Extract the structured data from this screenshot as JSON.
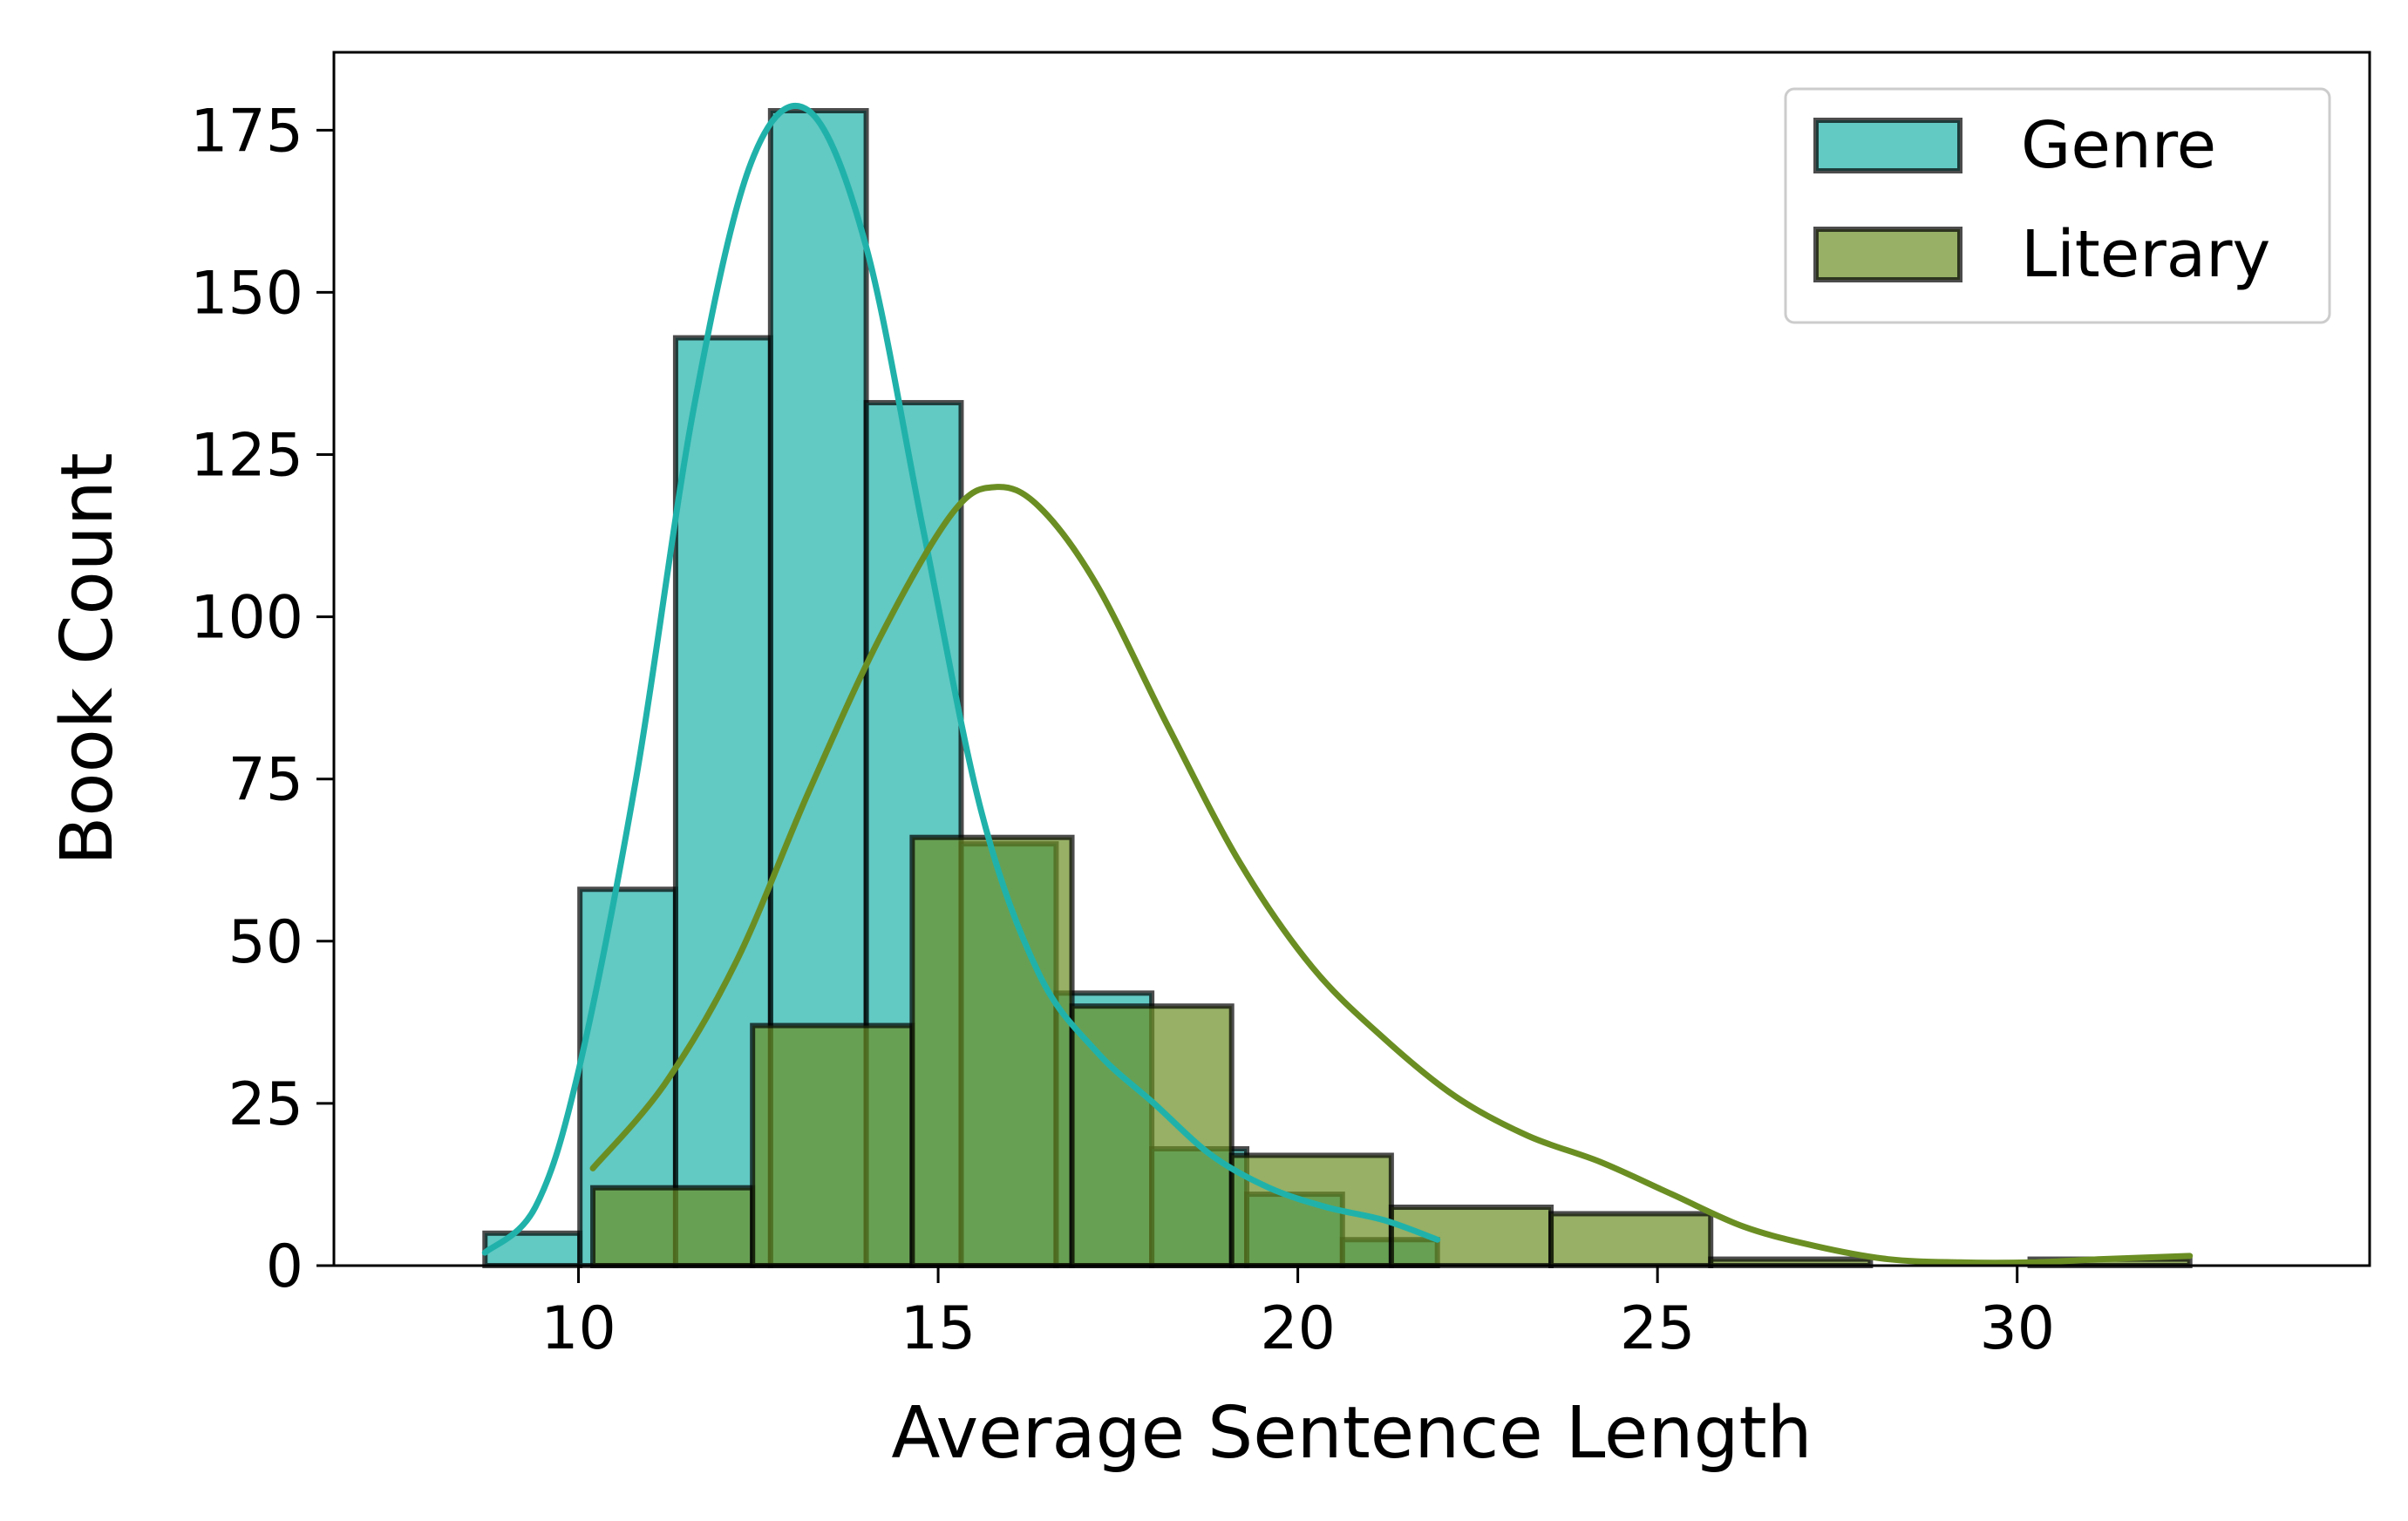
{
  "chart_data": {
    "type": "bar",
    "subtype": "overlaid histogram with KDE curves",
    "title": "",
    "xlabel": "Average Sentence Length",
    "ylabel": "Book Count",
    "xlim": [
      6.6,
      34.9
    ],
    "ylim": [
      0,
      187
    ],
    "xticks": [
      10,
      15,
      20,
      25,
      30
    ],
    "yticks": [
      0,
      25,
      50,
      75,
      100,
      125,
      150,
      175
    ],
    "grid": false,
    "legend_position": "top-right",
    "series": [
      {
        "name": "Genre",
        "color": "#20b2aa",
        "bin_edges": [
          8.7,
          10.02,
          11.35,
          12.67,
          14.0,
          15.32,
          16.64,
          17.97,
          19.29,
          20.62,
          21.94
        ],
        "counts": [
          5,
          58,
          143,
          178,
          133,
          65,
          42,
          18,
          11,
          4
        ],
        "kde_x": [
          8.7,
          9.4,
          10.0,
          10.8,
          11.6,
          12.4,
          13.2,
          14.0,
          14.8,
          15.6,
          16.4,
          17.2,
          18.0,
          18.8,
          19.6,
          20.4,
          21.2,
          21.94
        ],
        "kde_y": [
          2,
          9,
          30,
          75,
          132,
          170,
          178,
          157,
          113,
          70,
          45,
          33,
          25,
          17,
          12,
          9,
          7,
          4
        ]
      },
      {
        "name": "Literary",
        "color": "#6b8e23",
        "bin_edges": [
          10.2,
          12.42,
          14.64,
          16.86,
          19.08,
          21.3,
          23.52,
          25.74,
          27.96,
          30.18,
          32.4
        ],
        "counts": [
          12,
          37,
          66,
          40,
          17,
          9,
          8,
          1,
          0,
          1
        ],
        "kde_x": [
          10.2,
          11.2,
          12.2,
          13.2,
          14.2,
          15.2,
          15.8,
          16.4,
          17.2,
          18.2,
          19.2,
          20.2,
          21.2,
          22.2,
          23.2,
          24.2,
          25.2,
          26.2,
          27.2,
          28.2,
          29.2,
          30.2,
          31.2,
          32.4
        ],
        "kde_y": [
          15,
          28,
          47,
          73,
          97,
          116,
          120,
          117,
          105,
          83,
          62,
          46,
          35,
          26,
          20,
          16,
          11,
          6,
          3,
          1,
          0.5,
          0.5,
          1,
          1.5
        ]
      }
    ]
  }
}
